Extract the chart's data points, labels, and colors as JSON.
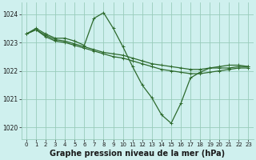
{
  "background_color": "#cff0ee",
  "plot_bg": "#cff0ee",
  "grid_color": "#99ccbb",
  "line_color": "#2d6a2d",
  "title": "Graphe pression niveau de la mer (hPa)",
  "xlim": [
    -0.5,
    23.5
  ],
  "ylim": [
    1019.6,
    1024.4
  ],
  "yticks": [
    1020,
    1021,
    1022,
    1023,
    1024
  ],
  "xticks": [
    0,
    1,
    2,
    3,
    4,
    5,
    6,
    7,
    8,
    9,
    10,
    11,
    12,
    13,
    14,
    15,
    16,
    17,
    18,
    19,
    20,
    21,
    22,
    23
  ],
  "series": [
    {
      "x": [
        0,
        1,
        2,
        3,
        4,
        5,
        6,
        7,
        8,
        9,
        10,
        11,
        12,
        13,
        14,
        15,
        16,
        17,
        18,
        19,
        20,
        21,
        22,
        23
      ],
      "y": [
        1023.3,
        1023.5,
        1023.3,
        1023.15,
        1023.15,
        1023.05,
        1022.9,
        1023.85,
        1024.05,
        1023.5,
        1022.85,
        1022.15,
        1021.5,
        1021.05,
        1020.45,
        1020.15,
        1020.85,
        1021.75,
        1021.95,
        1022.1,
        1022.15,
        1022.2,
        1022.2,
        1022.15
      ]
    },
    {
      "x": [
        0,
        1,
        2,
        3,
        4,
        5,
        6,
        7,
        8,
        9,
        10,
        11,
        12,
        13,
        14,
        15,
        16,
        17,
        18,
        19,
        20,
        21,
        22,
        23
      ],
      "y": [
        1023.3,
        1023.45,
        1023.25,
        1023.1,
        1023.05,
        1022.95,
        1022.85,
        1022.75,
        1022.65,
        1022.6,
        1022.55,
        1022.45,
        1022.35,
        1022.25,
        1022.2,
        1022.15,
        1022.1,
        1022.05,
        1022.05,
        1022.1,
        1022.1,
        1022.1,
        1022.15,
        1022.15
      ]
    },
    {
      "x": [
        0,
        1,
        2,
        3,
        4,
        5,
        6,
        7,
        8,
        9,
        10,
        11,
        12,
        13,
        14,
        15,
        16,
        17,
        18,
        19,
        20,
        21,
        22,
        23
      ],
      "y": [
        1023.3,
        1023.45,
        1023.2,
        1023.05,
        1023.0,
        1022.9,
        1022.8,
        1022.7,
        1022.6,
        1022.5,
        1022.45,
        1022.35,
        1022.25,
        1022.15,
        1022.05,
        1022.0,
        1021.95,
        1021.9,
        1021.9,
        1021.95,
        1022.0,
        1022.05,
        1022.1,
        1022.1
      ]
    }
  ],
  "title_fontsize": 7,
  "tick_fontsize": 5.0,
  "title_color": "#1a1a1a",
  "tick_color": "#1a1a1a"
}
